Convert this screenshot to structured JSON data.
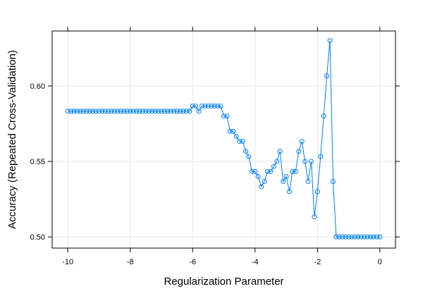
{
  "chart_data": {
    "type": "line",
    "title": "",
    "xlabel": "Regularization Parameter",
    "ylabel": "Accuracy (Repeated Cross-Validation)",
    "xlim": [
      -10.5,
      0.5
    ],
    "ylim": [
      0.4926,
      0.6364
    ],
    "x_ticks": [
      -10,
      -8,
      -6,
      -4,
      -2,
      0
    ],
    "x_tick_labels": [
      "-10",
      "-8",
      "-6",
      "-4",
      "-2",
      "0"
    ],
    "y_ticks": [
      0.5,
      0.55,
      0.6
    ],
    "y_tick_labels": [
      "0.50",
      "0.55",
      "0.60"
    ],
    "grid": true,
    "series_color": "#0080ff",
    "grid_color": "#e6e6e6",
    "series": [
      {
        "x": [
          -10.0,
          -9.9,
          -9.8,
          -9.7,
          -9.6,
          -9.5,
          -9.4,
          -9.3,
          -9.2,
          -9.1,
          -9.0,
          -8.9,
          -8.8,
          -8.7,
          -8.6,
          -8.5,
          -8.4,
          -8.3,
          -8.2,
          -8.1,
          -8.0,
          -7.9,
          -7.8,
          -7.7,
          -7.6,
          -7.5,
          -7.4,
          -7.3,
          -7.2,
          -7.1,
          -7.0,
          -6.9,
          -6.8,
          -6.7,
          -6.6,
          -6.5,
          -6.4,
          -6.3,
          -6.2,
          -6.1,
          -6.0,
          -5.9,
          -5.8,
          -5.7,
          -5.6,
          -5.5,
          -5.4,
          -5.3,
          -5.2,
          -5.1,
          -5.0,
          -4.9,
          -4.8,
          -4.7,
          -4.6,
          -4.5,
          -4.4,
          -4.3,
          -4.2,
          -4.1,
          -4.0,
          -3.9,
          -3.8,
          -3.7,
          -3.6,
          -3.5,
          -3.4,
          -3.3,
          -3.2,
          -3.1,
          -3.0,
          -2.9,
          -2.8,
          -2.7,
          -2.6,
          -2.5,
          -2.4,
          -2.3,
          -2.2,
          -2.1,
          -2.0,
          -1.9,
          -1.8,
          -1.7,
          -1.6,
          -1.5,
          -1.4,
          -1.3,
          -1.2,
          -1.1,
          -1.0,
          -0.9,
          -0.8,
          -0.7,
          -0.6,
          -0.5,
          -0.4,
          -0.3,
          -0.2,
          -0.1,
          0.0
        ],
        "y": [
          0.5833,
          0.5833,
          0.5833,
          0.5833,
          0.5833,
          0.5833,
          0.5833,
          0.5833,
          0.5833,
          0.5833,
          0.5833,
          0.5833,
          0.5833,
          0.5833,
          0.5833,
          0.5833,
          0.5833,
          0.5833,
          0.5833,
          0.5833,
          0.5833,
          0.5833,
          0.5833,
          0.5833,
          0.5833,
          0.5833,
          0.5833,
          0.5833,
          0.5833,
          0.5833,
          0.5833,
          0.5833,
          0.5833,
          0.5833,
          0.5833,
          0.5833,
          0.5833,
          0.5833,
          0.5833,
          0.5833,
          0.5867,
          0.5867,
          0.5833,
          0.5867,
          0.5867,
          0.5867,
          0.5867,
          0.5867,
          0.5867,
          0.5867,
          0.58,
          0.58,
          0.57,
          0.57,
          0.5667,
          0.5633,
          0.5633,
          0.5567,
          0.5533,
          0.5433,
          0.5433,
          0.54,
          0.5333,
          0.5367,
          0.5433,
          0.5433,
          0.5467,
          0.55,
          0.5567,
          0.5367,
          0.54,
          0.53,
          0.5433,
          0.5433,
          0.5567,
          0.5633,
          0.55,
          0.5367,
          0.55,
          0.5133,
          0.53,
          0.5533,
          0.58,
          0.6067,
          0.63,
          0.5367,
          0.5,
          0.5,
          0.5,
          0.5,
          0.5,
          0.5,
          0.5,
          0.5,
          0.5,
          0.5,
          0.5,
          0.5,
          0.5,
          0.5,
          0.5
        ]
      }
    ]
  }
}
